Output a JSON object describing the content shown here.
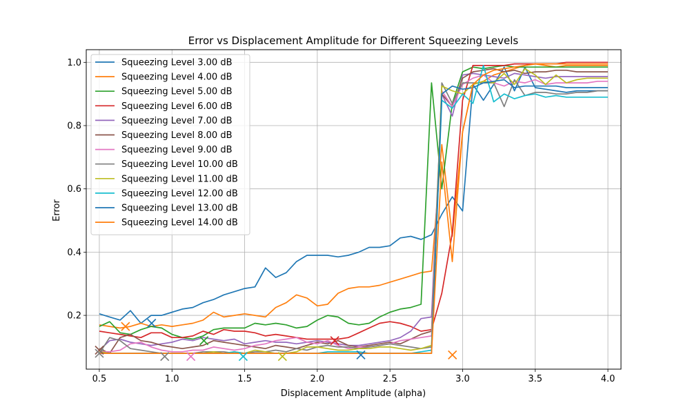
{
  "chart_data": {
    "type": "line",
    "title": "Error vs Displacement Amplitude for Different Squeezing Levels",
    "xlabel": "Displacement Amplitude (alpha)",
    "ylabel": "Error",
    "xlim": [
      0.41,
      4.09
    ],
    "ylim": [
      0.03,
      1.04
    ],
    "xticks": [
      "0.5",
      "1.0",
      "1.5",
      "2.0",
      "2.5",
      "3.0",
      "3.5",
      "4.0"
    ],
    "yticks": [
      "0.2",
      "0.4",
      "0.6",
      "0.8",
      "1.0"
    ],
    "grid": true,
    "legend_position": "upper-left",
    "x": [
      0.5,
      0.571,
      0.643,
      0.714,
      0.786,
      0.857,
      0.929,
      1.0,
      1.071,
      1.143,
      1.214,
      1.286,
      1.357,
      1.429,
      1.5,
      1.571,
      1.643,
      1.714,
      1.786,
      1.857,
      1.929,
      2.0,
      2.071,
      2.143,
      2.214,
      2.286,
      2.357,
      2.429,
      2.5,
      2.571,
      2.643,
      2.714,
      2.786,
      2.857,
      2.929,
      3.0,
      3.071,
      3.143,
      3.214,
      3.286,
      3.357,
      3.429,
      3.5,
      3.571,
      3.643,
      3.714,
      3.786,
      3.857,
      3.929,
      4.0
    ],
    "series": [
      {
        "name": "Squeezing Level 3.00 dB",
        "color": "#1f77b4",
        "values": [
          0.205,
          0.195,
          0.185,
          0.215,
          0.175,
          0.2,
          0.2,
          0.21,
          0.22,
          0.225,
          0.24,
          0.25,
          0.265,
          0.275,
          0.285,
          0.29,
          0.35,
          0.32,
          0.335,
          0.37,
          0.39,
          0.39,
          0.39,
          0.385,
          0.39,
          0.4,
          0.415,
          0.415,
          0.42,
          0.445,
          0.45,
          0.44,
          0.455,
          0.52,
          0.575,
          0.53,
          0.93,
          0.88,
          0.93,
          0.985,
          0.91,
          0.985,
          0.92,
          0.915,
          0.91,
          0.905,
          0.91,
          0.91,
          0.91,
          0.91
        ]
      },
      {
        "name": "Squeezing Level 4.00 dB",
        "color": "#ff7f0e",
        "values": [
          0.17,
          0.165,
          0.16,
          0.165,
          0.175,
          0.165,
          0.17,
          0.165,
          0.17,
          0.175,
          0.185,
          0.21,
          0.195,
          0.2,
          0.205,
          0.2,
          0.195,
          0.225,
          0.24,
          0.265,
          0.255,
          0.23,
          0.235,
          0.27,
          0.285,
          0.29,
          0.29,
          0.295,
          0.305,
          0.315,
          0.325,
          0.335,
          0.34,
          0.74,
          0.45,
          0.78,
          0.93,
          0.94,
          0.96,
          0.97,
          0.98,
          0.99,
          0.995,
          0.99,
          0.985,
          0.99,
          0.99,
          0.99,
          0.99,
          0.99
        ]
      },
      {
        "name": "Squeezing Level 5.00 dB",
        "color": "#2ca02c",
        "values": [
          0.165,
          0.18,
          0.145,
          0.14,
          0.155,
          0.165,
          0.16,
          0.14,
          0.13,
          0.125,
          0.135,
          0.155,
          0.16,
          0.16,
          0.16,
          0.175,
          0.17,
          0.175,
          0.17,
          0.16,
          0.165,
          0.185,
          0.2,
          0.195,
          0.175,
          0.17,
          0.175,
          0.195,
          0.21,
          0.22,
          0.225,
          0.235,
          0.935,
          0.6,
          0.87,
          0.97,
          0.985,
          0.98,
          0.985,
          0.99,
          0.985,
          0.985,
          0.985,
          0.985,
          0.985,
          0.985,
          0.985,
          0.985,
          0.985,
          0.985
        ]
      },
      {
        "name": "Squeezing Level 6.00 dB",
        "color": "#d62728",
        "values": [
          0.15,
          0.145,
          0.14,
          0.135,
          0.13,
          0.145,
          0.145,
          0.13,
          0.13,
          0.135,
          0.15,
          0.14,
          0.155,
          0.15,
          0.15,
          0.145,
          0.135,
          0.14,
          0.135,
          0.13,
          0.125,
          0.125,
          0.125,
          0.125,
          0.13,
          0.145,
          0.16,
          0.175,
          0.18,
          0.175,
          0.165,
          0.15,
          0.155,
          0.27,
          0.46,
          0.88,
          0.99,
          0.99,
          0.99,
          0.99,
          0.995,
          0.995,
          0.995,
          0.995,
          0.995,
          1.0,
          1.0,
          1.0,
          1.0,
          1.0
        ]
      },
      {
        "name": "Squeezing Level 7.00 dB",
        "color": "#9467bd",
        "values": [
          0.09,
          0.12,
          0.125,
          0.115,
          0.11,
          0.105,
          0.11,
          0.115,
          0.125,
          0.12,
          0.13,
          0.125,
          0.12,
          0.125,
          0.11,
          0.115,
          0.12,
          0.115,
          0.115,
          0.11,
          0.115,
          0.12,
          0.115,
          0.11,
          0.105,
          0.105,
          0.11,
          0.115,
          0.12,
          0.13,
          0.15,
          0.19,
          0.195,
          0.9,
          0.83,
          0.96,
          0.965,
          0.96,
          0.955,
          0.95,
          0.965,
          0.96,
          0.955,
          0.95,
          0.955,
          0.955,
          0.955,
          0.955,
          0.955,
          0.955
        ]
      },
      {
        "name": "Squeezing Level 8.00 dB",
        "color": "#8c564b",
        "values": [
          0.095,
          0.08,
          0.13,
          0.14,
          0.12,
          0.115,
          0.105,
          0.1,
          0.095,
          0.1,
          0.105,
          0.12,
          0.115,
          0.11,
          0.105,
          0.1,
          0.095,
          0.105,
          0.1,
          0.095,
          0.105,
          0.115,
          0.11,
          0.12,
          0.105,
          0.1,
          0.105,
          0.11,
          0.115,
          0.11,
          0.125,
          0.14,
          0.15,
          0.9,
          0.86,
          0.95,
          0.97,
          0.975,
          0.98,
          0.97,
          0.975,
          0.965,
          0.97,
          0.97,
          0.975,
          0.975,
          0.97,
          0.97,
          0.97,
          0.97
        ]
      },
      {
        "name": "Squeezing Level 9.00 dB",
        "color": "#e377c2",
        "values": [
          0.085,
          0.085,
          0.09,
          0.11,
          0.115,
          0.1,
          0.09,
          0.085,
          0.085,
          0.09,
          0.09,
          0.1,
          0.095,
          0.09,
          0.095,
          0.105,
          0.11,
          0.12,
          0.125,
          0.13,
          0.115,
          0.11,
          0.12,
          0.105,
          0.095,
          0.1,
          0.1,
          0.105,
          0.11,
          0.12,
          0.125,
          0.13,
          0.135,
          0.91,
          0.86,
          0.93,
          0.95,
          0.96,
          0.935,
          0.925,
          0.94,
          0.935,
          0.945,
          0.93,
          0.935,
          0.935,
          0.935,
          0.935,
          0.94,
          0.94
        ]
      },
      {
        "name": "Squeezing Level 10.00 dB",
        "color": "#7f7f7f",
        "values": [
          0.08,
          0.13,
          0.12,
          0.095,
          0.09,
          0.085,
          0.08,
          0.08,
          0.08,
          0.08,
          0.085,
          0.085,
          0.085,
          0.08,
          0.08,
          0.085,
          0.085,
          0.09,
          0.085,
          0.095,
          0.09,
          0.1,
          0.105,
          0.1,
          0.1,
          0.095,
          0.1,
          0.105,
          0.11,
          0.105,
          0.1,
          0.095,
          0.1,
          0.935,
          0.87,
          0.935,
          0.935,
          0.935,
          0.935,
          0.86,
          0.945,
          0.895,
          0.905,
          0.905,
          0.9,
          0.9,
          0.905,
          0.905,
          0.91,
          0.91
        ]
      },
      {
        "name": "Squeezing Level 11.00 dB",
        "color": "#bcbd22",
        "values": [
          0.085,
          0.08,
          0.08,
          0.08,
          0.08,
          0.08,
          0.08,
          0.08,
          0.08,
          0.08,
          0.08,
          0.085,
          0.08,
          0.085,
          0.08,
          0.09,
          0.085,
          0.08,
          0.08,
          0.085,
          0.1,
          0.1,
          0.095,
          0.09,
          0.09,
          0.095,
          0.095,
          0.1,
          0.1,
          0.095,
          0.09,
          0.095,
          0.105,
          0.925,
          0.91,
          0.9,
          0.93,
          0.94,
          0.935,
          0.965,
          0.93,
          0.98,
          0.96,
          0.93,
          0.96,
          0.935,
          0.945,
          0.95,
          0.95,
          0.95
        ]
      },
      {
        "name": "Squeezing Level 12.00 dB",
        "color": "#17becf",
        "values": [
          0.08,
          0.08,
          0.08,
          0.08,
          0.08,
          0.08,
          0.08,
          0.08,
          0.08,
          0.08,
          0.08,
          0.08,
          0.08,
          0.085,
          0.08,
          0.08,
          0.08,
          0.08,
          0.08,
          0.08,
          0.08,
          0.08,
          0.085,
          0.085,
          0.085,
          0.085,
          0.08,
          0.08,
          0.08,
          0.08,
          0.08,
          0.085,
          0.09,
          0.88,
          0.855,
          0.9,
          0.87,
          0.99,
          0.875,
          0.9,
          0.885,
          0.895,
          0.9,
          0.89,
          0.895,
          0.89,
          0.89,
          0.89,
          0.89,
          0.89
        ]
      },
      {
        "name": "Squeezing Level 13.00 dB",
        "color": "#1f77b4",
        "values": [
          0.08,
          0.08,
          0.08,
          0.08,
          0.08,
          0.08,
          0.08,
          0.08,
          0.08,
          0.08,
          0.08,
          0.08,
          0.08,
          0.08,
          0.08,
          0.08,
          0.08,
          0.08,
          0.08,
          0.08,
          0.08,
          0.08,
          0.08,
          0.08,
          0.08,
          0.08,
          0.08,
          0.08,
          0.08,
          0.08,
          0.08,
          0.08,
          0.08,
          0.9,
          0.925,
          0.915,
          0.92,
          0.935,
          0.94,
          0.945,
          0.92,
          0.925,
          0.925,
          0.925,
          0.925,
          0.92,
          0.92,
          0.92,
          0.92,
          0.92
        ]
      },
      {
        "name": "Squeezing Level 14.00 dB",
        "color": "#ff7f0e",
        "values": [
          0.08,
          0.08,
          0.08,
          0.08,
          0.08,
          0.08,
          0.08,
          0.08,
          0.08,
          0.08,
          0.08,
          0.08,
          0.08,
          0.08,
          0.08,
          0.08,
          0.08,
          0.08,
          0.08,
          0.08,
          0.08,
          0.08,
          0.08,
          0.08,
          0.08,
          0.08,
          0.08,
          0.08,
          0.08,
          0.08,
          0.08,
          0.08,
          0.08,
          0.685,
          0.37,
          0.78,
          0.93,
          0.96,
          0.975,
          0.98,
          0.985,
          0.99,
          0.995,
          0.995,
          0.995,
          0.995,
          0.995,
          0.995,
          0.995,
          0.995
        ]
      }
    ],
    "markers": [
      {
        "x": 0.5,
        "y": 0.09,
        "color": "#8c564b"
      },
      {
        "x": 0.5,
        "y": 0.08,
        "color": "#7f7f7f"
      },
      {
        "x": 0.68,
        "y": 0.165,
        "color": "#ff7f0e"
      },
      {
        "x": 0.86,
        "y": 0.175,
        "color": "#1f77b4"
      },
      {
        "x": 0.95,
        "y": 0.07,
        "color": "#7f7f7f"
      },
      {
        "x": 1.13,
        "y": 0.07,
        "color": "#e377c2"
      },
      {
        "x": 1.22,
        "y": 0.12,
        "color": "#2ca02c"
      },
      {
        "x": 1.49,
        "y": 0.07,
        "color": "#17becf"
      },
      {
        "x": 1.76,
        "y": 0.07,
        "color": "#bcbd22"
      },
      {
        "x": 2.12,
        "y": 0.12,
        "color": "#d62728"
      },
      {
        "x": 2.3,
        "y": 0.075,
        "color": "#1f77b4"
      },
      {
        "x": 2.93,
        "y": 0.075,
        "color": "#ff7f0e"
      }
    ]
  }
}
